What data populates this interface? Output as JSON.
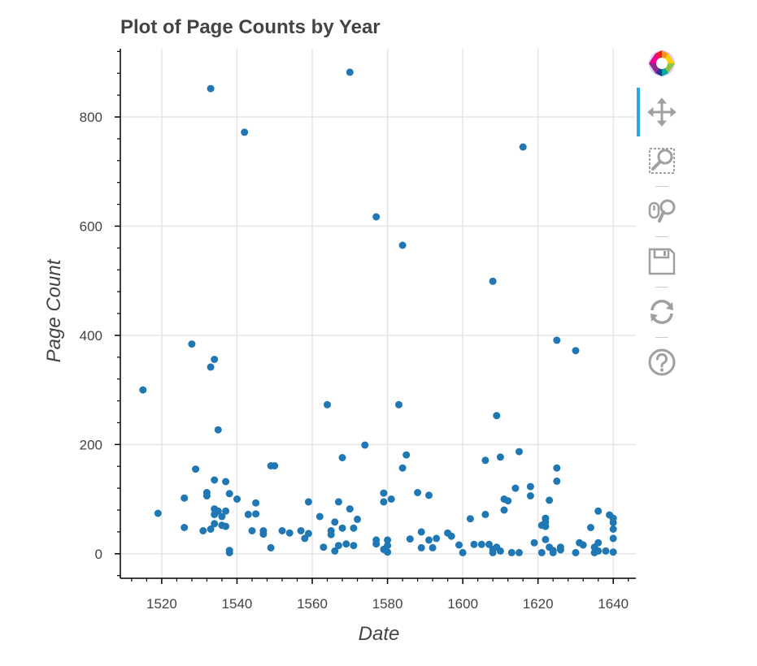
{
  "chart_data": {
    "type": "scatter",
    "title": "Plot of Page Counts by Year",
    "xlabel": "Date",
    "ylabel": "Page Count",
    "xlim": [
      1509,
      1646
    ],
    "ylim": [
      -45,
      925
    ],
    "x_ticks": [
      1520,
      1540,
      1560,
      1580,
      1600,
      1620,
      1640
    ],
    "y_ticks": [
      0,
      200,
      400,
      600,
      800
    ],
    "grid": true,
    "marker_color": "#1f77b4",
    "points": [
      [
        1515,
        300
      ],
      [
        1519,
        74
      ],
      [
        1526,
        102
      ],
      [
        1526,
        48
      ],
      [
        1528,
        384
      ],
      [
        1529,
        155
      ],
      [
        1531,
        42
      ],
      [
        1532,
        112
      ],
      [
        1532,
        106
      ],
      [
        1533,
        852
      ],
      [
        1533,
        342
      ],
      [
        1533,
        45
      ],
      [
        1534,
        356
      ],
      [
        1534,
        135
      ],
      [
        1534,
        82
      ],
      [
        1534,
        72
      ],
      [
        1534,
        55
      ],
      [
        1535,
        227
      ],
      [
        1535,
        78
      ],
      [
        1536,
        52
      ],
      [
        1536,
        68
      ],
      [
        1537,
        132
      ],
      [
        1537,
        78
      ],
      [
        1537,
        50
      ],
      [
        1538,
        110
      ],
      [
        1538,
        6
      ],
      [
        1538,
        2
      ],
      [
        1540,
        100
      ],
      [
        1542,
        772
      ],
      [
        1543,
        72
      ],
      [
        1544,
        42
      ],
      [
        1545,
        93
      ],
      [
        1545,
        73
      ],
      [
        1547,
        42
      ],
      [
        1547,
        36
      ],
      [
        1549,
        11
      ],
      [
        1549,
        161
      ],
      [
        1550,
        161
      ],
      [
        1552,
        42
      ],
      [
        1554,
        38
      ],
      [
        1557,
        42
      ],
      [
        1558,
        28
      ],
      [
        1559,
        37
      ],
      [
        1559,
        95
      ],
      [
        1562,
        68
      ],
      [
        1563,
        12
      ],
      [
        1564,
        273
      ],
      [
        1565,
        42
      ],
      [
        1565,
        35
      ],
      [
        1566,
        58
      ],
      [
        1566,
        5
      ],
      [
        1567,
        95
      ],
      [
        1567,
        15
      ],
      [
        1568,
        176
      ],
      [
        1568,
        47
      ],
      [
        1569,
        18
      ],
      [
        1570,
        882
      ],
      [
        1570,
        82
      ],
      [
        1571,
        47
      ],
      [
        1571,
        15
      ],
      [
        1572,
        63
      ],
      [
        1574,
        199
      ],
      [
        1577,
        617
      ],
      [
        1577,
        25
      ],
      [
        1577,
        18
      ],
      [
        1579,
        111
      ],
      [
        1579,
        95
      ],
      [
        1579,
        8
      ],
      [
        1580,
        25
      ],
      [
        1580,
        15
      ],
      [
        1580,
        3
      ],
      [
        1581,
        100
      ],
      [
        1583,
        273
      ],
      [
        1584,
        565
      ],
      [
        1584,
        157
      ],
      [
        1585,
        181
      ],
      [
        1586,
        27
      ],
      [
        1588,
        112
      ],
      [
        1589,
        40
      ],
      [
        1589,
        11
      ],
      [
        1591,
        107
      ],
      [
        1591,
        25
      ],
      [
        1592,
        11
      ],
      [
        1593,
        28
      ],
      [
        1596,
        38
      ],
      [
        1597,
        32
      ],
      [
        1599,
        16
      ],
      [
        1600,
        2
      ],
      [
        1602,
        64
      ],
      [
        1603,
        17
      ],
      [
        1605,
        17
      ],
      [
        1606,
        171
      ],
      [
        1606,
        72
      ],
      [
        1607,
        17
      ],
      [
        1608,
        499
      ],
      [
        1608,
        8
      ],
      [
        1608,
        2
      ],
      [
        1609,
        253
      ],
      [
        1609,
        12
      ],
      [
        1610,
        177
      ],
      [
        1610,
        5
      ],
      [
        1611,
        100
      ],
      [
        1611,
        80
      ],
      [
        1612,
        97
      ],
      [
        1613,
        2
      ],
      [
        1614,
        120
      ],
      [
        1615,
        187
      ],
      [
        1615,
        2
      ],
      [
        1616,
        745
      ],
      [
        1618,
        123
      ],
      [
        1618,
        106
      ],
      [
        1619,
        20
      ],
      [
        1621,
        52
      ],
      [
        1621,
        2
      ],
      [
        1622,
        65
      ],
      [
        1622,
        58
      ],
      [
        1622,
        50
      ],
      [
        1622,
        26
      ],
      [
        1623,
        98
      ],
      [
        1623,
        12
      ],
      [
        1624,
        6
      ],
      [
        1624,
        2
      ],
      [
        1625,
        391
      ],
      [
        1625,
        157
      ],
      [
        1625,
        133
      ],
      [
        1626,
        12
      ],
      [
        1626,
        7
      ],
      [
        1630,
        372
      ],
      [
        1630,
        2
      ],
      [
        1631,
        20
      ],
      [
        1632,
        16
      ],
      [
        1634,
        48
      ],
      [
        1635,
        12
      ],
      [
        1635,
        2
      ],
      [
        1636,
        78
      ],
      [
        1636,
        20
      ],
      [
        1636,
        5
      ],
      [
        1638,
        5
      ],
      [
        1639,
        71
      ],
      [
        1640,
        65
      ],
      [
        1640,
        57
      ],
      [
        1640,
        45
      ],
      [
        1640,
        28
      ],
      [
        1640,
        3
      ]
    ]
  },
  "toolbar": {
    "tools": [
      {
        "name": "bokeh-logo-icon",
        "interactable": false
      },
      {
        "name": "pan-tool-icon",
        "interactable": true
      },
      {
        "name": "box-zoom-tool-icon",
        "interactable": true
      },
      {
        "name": "wheel-zoom-tool-icon",
        "interactable": true
      },
      {
        "name": "save-tool-icon",
        "interactable": true
      },
      {
        "name": "reset-tool-icon",
        "interactable": true
      },
      {
        "name": "help-tool-icon",
        "interactable": true
      }
    ],
    "active_color": "#26aae1",
    "icon_color": "#a0a0a0"
  }
}
